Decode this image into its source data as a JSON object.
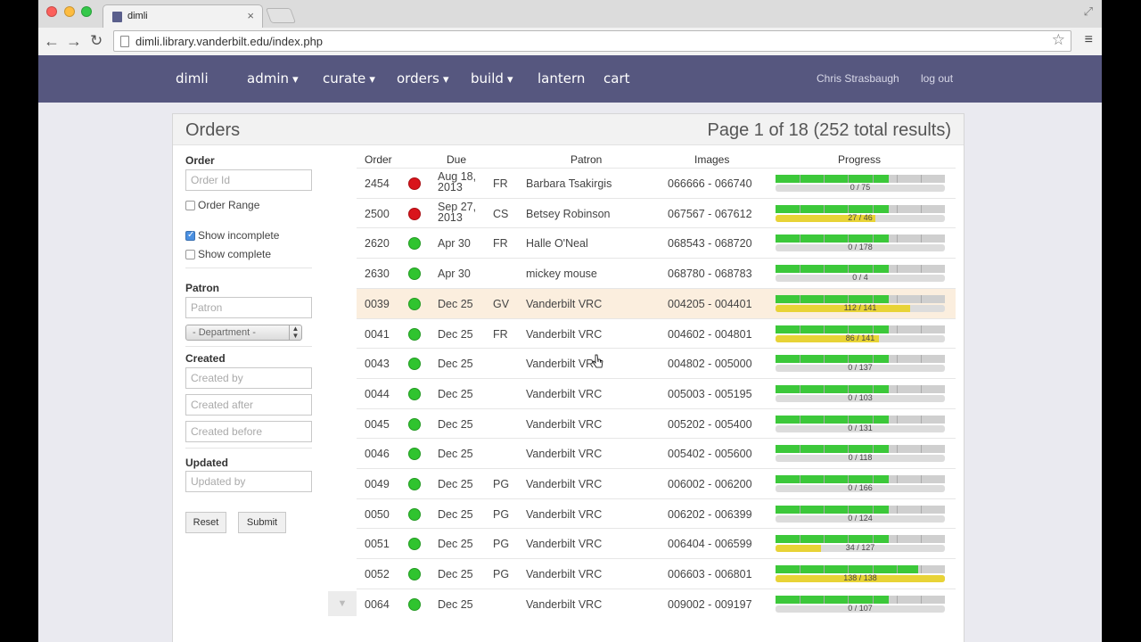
{
  "browser": {
    "tab_title": "dimli",
    "tab_close": "×",
    "url": "dimli.library.vanderbilt.edu/index.php",
    "back": "←",
    "forward": "→",
    "reload": "↻",
    "star": "☆",
    "menu": "≡",
    "maximize": "⤢"
  },
  "navbar": {
    "brand": "dimli",
    "items": [
      "admin",
      "curate",
      "orders",
      "build",
      "lantern",
      "cart"
    ],
    "user": "Chris Strasbaugh",
    "logout": "log out"
  },
  "panel": {
    "title": "Orders",
    "pager": "Page 1 of 18 (252 total results)"
  },
  "filters": {
    "order_label": "Order",
    "order_id_placeholder": "Order Id",
    "order_range": "Order Range",
    "show_incomplete": "Show incomplete",
    "show_incomplete_checked": true,
    "show_complete": "Show complete",
    "show_complete_checked": false,
    "order_range_checked": false,
    "patron_label": "Patron",
    "patron_placeholder": "Patron",
    "department": "- Department -",
    "created_label": "Created",
    "created_by_placeholder": "Created by",
    "created_after_placeholder": "Created after",
    "created_before_placeholder": "Created before",
    "updated_label": "Updated",
    "updated_by_placeholder": "Updated by",
    "reset": "Reset",
    "submit": "Submit"
  },
  "table": {
    "headers": [
      "Order",
      "Due",
      "Patron",
      "Images",
      "Progress"
    ],
    "rows": [
      {
        "order": "2454",
        "status": "red",
        "due": [
          "Aug 18,",
          "2013"
        ],
        "dept": "FR",
        "patron": "Barbara Tsakirgis",
        "images": "066666 - 066740",
        "progress_label": "0 / 75",
        "done": 0,
        "total": 75
      },
      {
        "order": "2500",
        "status": "red",
        "due": [
          "Sep 27,",
          "2013"
        ],
        "dept": "CS",
        "patron": "Betsey Robinson",
        "images": "067567 - 067612",
        "progress_label": "27 / 46",
        "done": 27,
        "total": 46
      },
      {
        "order": "2620",
        "status": "green",
        "due": [
          "Apr 30"
        ],
        "dept": "FR",
        "patron": "Halle O'Neal",
        "images": "068543 - 068720",
        "progress_label": "0 / 178",
        "done": 0,
        "total": 178
      },
      {
        "order": "2630",
        "status": "green",
        "due": [
          "Apr 30"
        ],
        "dept": "",
        "patron": "mickey mouse",
        "images": "068780 - 068783",
        "progress_label": "0 / 4",
        "done": 0,
        "total": 4
      },
      {
        "order": "0039",
        "status": "green",
        "due": [
          "Dec 25"
        ],
        "dept": "GV",
        "patron": "Vanderbilt VRC",
        "images": "004205 - 004401",
        "progress_label": "112 / 141",
        "done": 112,
        "total": 141,
        "highlight": true
      },
      {
        "order": "0041",
        "status": "green",
        "due": [
          "Dec 25"
        ],
        "dept": "FR",
        "patron": "Vanderbilt VRC",
        "images": "004602 - 004801",
        "progress_label": "86 / 141",
        "done": 86,
        "total": 141
      },
      {
        "order": "0043",
        "status": "green",
        "due": [
          "Dec 25"
        ],
        "dept": "",
        "patron": "Vanderbilt VRC",
        "images": "004802 - 005000",
        "progress_label": "0 / 137",
        "done": 0,
        "total": 137
      },
      {
        "order": "0044",
        "status": "green",
        "due": [
          "Dec 25"
        ],
        "dept": "",
        "patron": "Vanderbilt VRC",
        "images": "005003 - 005195",
        "progress_label": "0 / 103",
        "done": 0,
        "total": 103
      },
      {
        "order": "0045",
        "status": "green",
        "due": [
          "Dec 25"
        ],
        "dept": "",
        "patron": "Vanderbilt VRC",
        "images": "005202 - 005400",
        "progress_label": "0 / 131",
        "done": 0,
        "total": 131
      },
      {
        "order": "0046",
        "status": "green",
        "due": [
          "Dec 25"
        ],
        "dept": "",
        "patron": "Vanderbilt VRC",
        "images": "005402 - 005600",
        "progress_label": "0 / 118",
        "done": 0,
        "total": 118
      },
      {
        "order": "0049",
        "status": "green",
        "due": [
          "Dec 25"
        ],
        "dept": "PG",
        "patron": "Vanderbilt VRC",
        "images": "006002 - 006200",
        "progress_label": "0 / 166",
        "done": 0,
        "total": 166
      },
      {
        "order": "0050",
        "status": "green",
        "due": [
          "Dec 25"
        ],
        "dept": "PG",
        "patron": "Vanderbilt VRC",
        "images": "006202 - 006399",
        "progress_label": "0 / 124",
        "done": 0,
        "total": 124
      },
      {
        "order": "0051",
        "status": "green",
        "due": [
          "Dec 25"
        ],
        "dept": "PG",
        "patron": "Vanderbilt VRC",
        "images": "006404 - 006599",
        "progress_label": "34 / 127",
        "done": 34,
        "total": 127
      },
      {
        "order": "0052",
        "status": "green",
        "due": [
          "Dec 25"
        ],
        "dept": "PG",
        "patron": "Vanderbilt VRC",
        "images": "006603 - 006801",
        "progress_label": "138 / 138",
        "done": 138,
        "total": 138,
        "stage_complete": true
      },
      {
        "order": "0064",
        "status": "green",
        "due": [
          "Dec 25"
        ],
        "dept": "",
        "patron": "Vanderbilt VRC",
        "images": "009002 - 009197",
        "progress_label": "0 / 107",
        "done": 0,
        "total": 107
      }
    ]
  },
  "colors": {
    "navbar": "#56577f",
    "status_red": "#d9141b",
    "status_green": "#30c42f",
    "progress_green": "#3cc83a",
    "progress_yellow": "#e8d336",
    "row_highlight": "#fbeede"
  }
}
